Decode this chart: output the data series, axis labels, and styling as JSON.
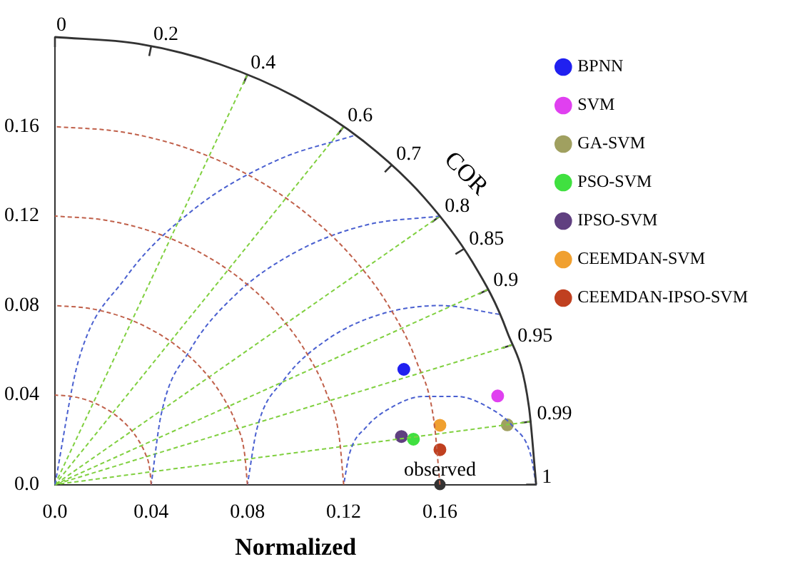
{
  "chart_data": {
    "type": "scatter",
    "xlabel": "Normalized",
    "legend": "top right",
    "marker": "circle",
    "xlim": [
      0,
      0.2
    ],
    "ylim": [
      0,
      0.2
    ],
    "xticks": [
      {
        "value": 0,
        "label": "0.0"
      },
      0.04,
      0.08,
      0.12,
      0.16
    ],
    "yticks": [
      {
        "value": 0,
        "label": "0.0"
      },
      0.04,
      0.08,
      0.12,
      0.16
    ],
    "series": [
      {
        "type": "line",
        "line_style": "solid",
        "marker": "none",
        "color": "#333333",
        "x": [
          0.2,
          0.197,
          0.1879,
          0.1732,
          0.1532,
          0.1286,
          0.1,
          0.0684,
          0.0347,
          0
        ],
        "values": [
          0,
          0.0347,
          0.0684,
          0.1,
          0.1286,
          0.1532,
          0.1732,
          0.1879,
          0.197,
          0.2
        ]
      },
      {
        "type": "line",
        "line_style": "dashed",
        "marker": "none",
        "color": "#c0604a",
        "x": [
          0.04,
          0.0394,
          0.0376,
          0.0346,
          0.0306,
          0.0257,
          0.02,
          0.0137,
          0.0069,
          0
        ],
        "values": [
          0,
          0.0069,
          0.0137,
          0.02,
          0.0257,
          0.0306,
          0.0346,
          0.0376,
          0.0394,
          0.04
        ]
      },
      {
        "type": "line",
        "line_style": "dashed",
        "marker": "none",
        "color": "#c0604a",
        "x": [
          0.08,
          0.0788,
          0.0752,
          0.0693,
          0.0613,
          0.0514,
          0.04,
          0.0274,
          0.0139,
          0
        ],
        "values": [
          0,
          0.0139,
          0.0274,
          0.04,
          0.0514,
          0.0613,
          0.0693,
          0.0752,
          0.0788,
          0.08
        ]
      },
      {
        "type": "line",
        "line_style": "dashed",
        "marker": "none",
        "color": "#c0604a",
        "x": [
          0.12,
          0.1182,
          0.1128,
          0.1039,
          0.0919,
          0.0771,
          0.06,
          0.041,
          0.0208,
          0
        ],
        "values": [
          0,
          0.0208,
          0.041,
          0.06,
          0.0771,
          0.0919,
          0.1039,
          0.1128,
          0.1182,
          0.12
        ]
      },
      {
        "type": "line",
        "line_style": "dashed",
        "marker": "none",
        "color": "#c0604a",
        "x": [
          0.16,
          0.1576,
          0.1504,
          0.1386,
          0.1226,
          0.1028,
          0.08,
          0.0547,
          0.0278,
          0
        ],
        "values": [
          0,
          0.0278,
          0.0547,
          0.08,
          0.1028,
          0.1226,
          0.1386,
          0.1504,
          0.1576,
          0.16
        ]
      },
      {
        "type": "line",
        "line_style": "dashed",
        "marker": "none",
        "color": "#4a60d0",
        "x": [
          0.2,
          0.1976,
          0.1906,
          0.18,
          0.1669,
          0.1531,
          0.14,
          0.1294,
          0.1224,
          0.12
        ],
        "values": [
          0,
          0.0137,
          0.0257,
          0.0346,
          0.0394,
          0.0394,
          0.0346,
          0.0257,
          0.0137,
          0
        ]
      },
      {
        "type": "line",
        "line_style": "dashed",
        "marker": "none",
        "color": "#4a60d0",
        "x": [
          0.1847,
          0.16,
          0.1353,
          0.113,
          0.0953,
          0.0839,
          0.08
        ],
        "values": [
          0.0761,
          0.08,
          0.0761,
          0.0647,
          0.047,
          0.0247,
          0
        ]
      },
      {
        "type": "line",
        "line_style": "dashed",
        "marker": "none",
        "color": "#4a60d0",
        "x": [
          0.16,
          0.1289,
          0.1,
          0.0751,
          0.0561,
          0.0441,
          0.04
        ],
        "values": [
          0.12,
          0.1159,
          0.1039,
          0.0849,
          0.06,
          0.0311,
          0
        ]
      },
      {
        "type": "line",
        "line_style": "dashed",
        "marker": "none",
        "color": "#4a60d0",
        "x": [
          0.124,
          0.0924,
          0.0572,
          0.0289,
          0.0096,
          0
        ],
        "values": [
          0.1559,
          0.145,
          0.1226,
          0.0918,
          0.0547,
          0
        ]
      },
      {
        "type": "line",
        "line_style": "dashed",
        "marker": "none",
        "color": "#80d040",
        "x": [
          0.08,
          0
        ],
        "values": [
          0.1833,
          0
        ]
      },
      {
        "type": "line",
        "line_style": "dashed",
        "marker": "none",
        "color": "#80d040",
        "x": [
          0.12,
          0
        ],
        "values": [
          0.16,
          0
        ]
      },
      {
        "type": "line",
        "line_style": "dashed",
        "marker": "none",
        "color": "#80d040",
        "x": [
          0.16,
          0
        ],
        "values": [
          0.12,
          0
        ]
      },
      {
        "type": "line",
        "line_style": "dashed",
        "marker": "none",
        "color": "#80d040",
        "x": [
          0.18,
          0
        ],
        "values": [
          0.0872,
          0
        ]
      },
      {
        "type": "line",
        "line_style": "dashed",
        "marker": "none",
        "color": "#80d040",
        "x": [
          0.19,
          0
        ],
        "values": [
          0.0624,
          0
        ]
      },
      {
        "type": "line",
        "line_style": "dashed",
        "marker": "none",
        "color": "#80d040",
        "x": [
          0.198,
          0
        ],
        "values": [
          0.0282,
          0
        ]
      },
      {
        "color": "#333333",
        "x": [
          0.16
        ],
        "values": [
          0
        ]
      },
      {
        "name": "BPNN",
        "color": "#2020f0",
        "x": [
          0.145
        ],
        "values": [
          0.0515
        ]
      },
      {
        "name": "SVM",
        "color": "#e040f0",
        "x": [
          0.184
        ],
        "values": [
          0.0396
        ]
      },
      {
        "name": "GA-SVM",
        "color": "#a0a060",
        "x": [
          0.188
        ],
        "values": [
          0.0267
        ]
      },
      {
        "name": "PSO-SVM",
        "color": "#40e040",
        "x": [
          0.149
        ],
        "values": [
          0.0203
        ]
      },
      {
        "name": "IPSO-SVM",
        "color": "#604080",
        "x": [
          0.144
        ],
        "values": [
          0.0215
        ]
      },
      {
        "name": "CEEMDAN-SVM",
        "color": "#f0a030",
        "x": [
          0.16
        ],
        "values": [
          0.0265
        ]
      },
      {
        "name": "CEEMDAN-IPSO-SVM",
        "color": "#c04020",
        "x": [
          0.16
        ],
        "values": [
          0.0156
        ]
      }
    ],
    "annotations": [
      "COR",
      {
        "text": "observed",
        "x": 0.16,
        "y": 0
      },
      "0",
      "0.2",
      "0.4",
      "0.6",
      "0.7",
      "0.8",
      "0.85",
      "0.9",
      "0.95",
      "0.99",
      "1"
    ]
  }
}
